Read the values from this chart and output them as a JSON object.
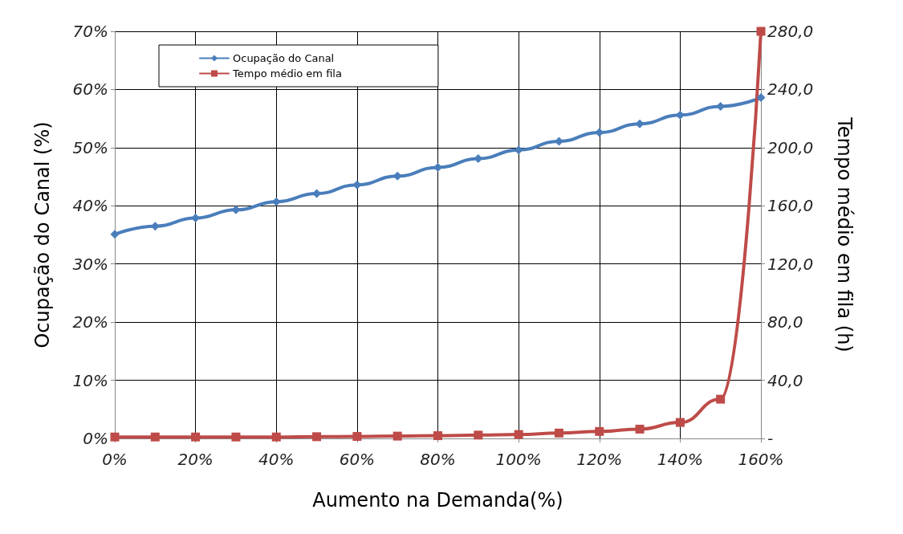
{
  "chart_data": {
    "type": "line",
    "xlabel": "Aumento na Demanda(%)",
    "ylabel": "Ocupação do Canal (%)",
    "y2label": "Tempo médio em fila (h)",
    "x": [
      0,
      10,
      20,
      30,
      40,
      50,
      60,
      70,
      80,
      90,
      100,
      110,
      120,
      130,
      140,
      150,
      160
    ],
    "series": [
      {
        "name": "Ocupação do Canal",
        "color": "#4a7ebb",
        "marker": "diamond",
        "values": [
          35.1,
          36.5,
          37.9,
          39.3,
          40.7,
          42.1,
          43.6,
          45.1,
          46.6,
          48.1,
          49.6,
          51.1,
          52.6,
          54.1,
          55.6,
          57.1,
          58.6
        ]
      },
      {
        "name": "Tempo médio em fila",
        "color": "#be4b48",
        "marker": "square",
        "axis": "y2",
        "values": [
          1,
          1,
          1,
          1,
          1,
          1.2,
          1.4,
          1.6,
          1.9,
          2.3,
          2.7,
          3.7,
          4.8,
          6.4,
          11,
          27,
          280
        ]
      }
    ],
    "xlim": [
      0,
      160
    ],
    "xticks": [
      {
        "value": 0,
        "label": "0%"
      },
      {
        "value": 20,
        "label": "20%"
      },
      {
        "value": 40,
        "label": "40%"
      },
      {
        "value": 60,
        "label": "60%"
      },
      {
        "value": 80,
        "label": "80%"
      },
      {
        "value": 100,
        "label": "100%"
      },
      {
        "value": 120,
        "label": "120%"
      },
      {
        "value": 140,
        "label": "140%"
      },
      {
        "value": 160,
        "label": "160%"
      }
    ],
    "ylim": [
      0,
      70
    ],
    "yticks": [
      {
        "value": 0,
        "label": "0%"
      },
      {
        "value": 10,
        "label": "10%"
      },
      {
        "value": 20,
        "label": "20%"
      },
      {
        "value": 30,
        "label": "30%"
      },
      {
        "value": 40,
        "label": "40%"
      },
      {
        "value": 50,
        "label": "50%"
      },
      {
        "value": 60,
        "label": "60%"
      },
      {
        "value": 70,
        "label": "70%"
      }
    ],
    "y2lim": [
      0,
      280
    ],
    "y2ticks": [
      {
        "value": 0,
        "label": "-"
      },
      {
        "value": 40,
        "label": "40,0"
      },
      {
        "value": 80,
        "label": "80,0"
      },
      {
        "value": 120,
        "label": "120,0"
      },
      {
        "value": 160,
        "label": "160,0"
      },
      {
        "value": 200,
        "label": "200,0"
      },
      {
        "value": 240,
        "label": "240,0"
      },
      {
        "value": 280,
        "label": "280,0"
      }
    ],
    "grid": true,
    "legend": "top left",
    "line_style": "solid"
  }
}
